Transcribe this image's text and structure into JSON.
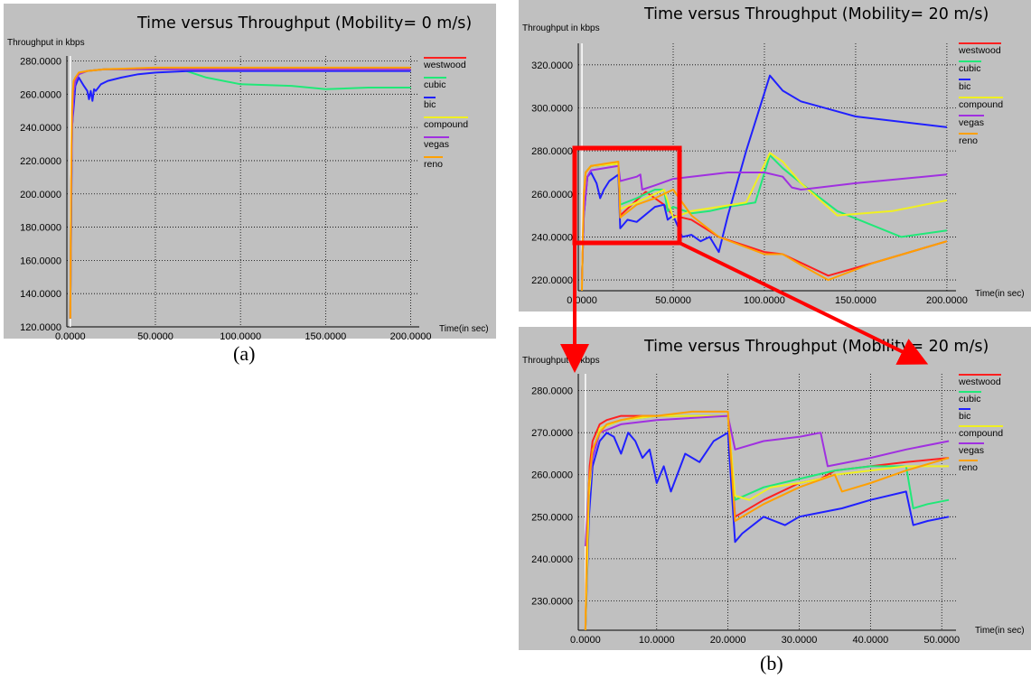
{
  "captions": {
    "a": "(a)",
    "b": "(b)"
  },
  "chart_data": [
    {
      "type": "line",
      "title": "Time versus Throughput (Mobility= 0 m/s)",
      "ylabel": "Throughput in kbps",
      "xlabel": "Time(in sec)",
      "xlim": [
        -2,
        205
      ],
      "ylim": [
        120,
        283
      ],
      "xticks": [
        0,
        50,
        100,
        150,
        200
      ],
      "xtick_labels": [
        "0.0000",
        "50.0000",
        "100.0000",
        "150.0000",
        "200.0000"
      ],
      "yticks": [
        120,
        140,
        160,
        180,
        200,
        220,
        240,
        260,
        280
      ],
      "ytick_labels": [
        "120.0000",
        "140.0000",
        "160.0000",
        "180.0000",
        "200.0000",
        "220.0000",
        "240.0000",
        "260.0000",
        "280.0000"
      ],
      "grid": true,
      "legend_position": "right",
      "series": [
        {
          "name": "westwood",
          "color": "#ff2020",
          "x": [
            0,
            0.5,
            1,
            2,
            3,
            5,
            10,
            20,
            50,
            100,
            150,
            200
          ],
          "y": [
            125,
            200,
            240,
            262,
            268,
            272,
            274,
            275,
            275,
            275,
            275,
            275
          ]
        },
        {
          "name": "cubic",
          "color": "#20e878",
          "x": [
            0,
            0.5,
            1,
            2,
            3,
            5,
            10,
            20,
            50,
            65,
            80,
            100,
            130,
            150,
            175,
            200
          ],
          "y": [
            125,
            200,
            240,
            262,
            268,
            272,
            274,
            275,
            275,
            275,
            270,
            266,
            265,
            263,
            264,
            264
          ]
        },
        {
          "name": "bic",
          "color": "#2020ff",
          "x": [
            0,
            1,
            3,
            5,
            8,
            10,
            11,
            12,
            13,
            14,
            15,
            18,
            22,
            30,
            40,
            50,
            70,
            100,
            150,
            200
          ],
          "y": [
            125,
            240,
            265,
            270,
            265,
            262,
            257,
            262,
            256,
            263,
            262,
            266,
            268,
            270,
            272,
            273,
            274,
            274,
            274,
            274
          ]
        },
        {
          "name": "compound",
          "color": "#f0f020",
          "x": [
            0,
            0.5,
            1,
            2,
            3,
            5,
            10,
            20,
            50,
            100,
            150,
            200
          ],
          "y": [
            125,
            200,
            240,
            262,
            268,
            272,
            274,
            275,
            275,
            275,
            275,
            275
          ]
        },
        {
          "name": "vegas",
          "color": "#a030e0",
          "x": [
            0,
            0.5,
            1,
            2,
            3,
            5,
            10,
            20,
            50,
            100,
            150,
            200
          ],
          "y": [
            125,
            200,
            238,
            262,
            268,
            272,
            274,
            275,
            275,
            275,
            275,
            275
          ]
        },
        {
          "name": "reno",
          "color": "#ffa000",
          "x": [
            0,
            0.3,
            0.6,
            1,
            1.5,
            2,
            3,
            5,
            10,
            20,
            50,
            100,
            150,
            200
          ],
          "y": [
            125,
            170,
            220,
            250,
            262,
            268,
            270,
            273,
            274,
            275,
            276,
            276,
            276,
            276
          ]
        }
      ]
    },
    {
      "type": "line",
      "title": "Time versus Throughput (Mobility= 20 m/s)",
      "ylabel": "Throughput in kbps",
      "xlabel": "Time(in sec)",
      "xlim": [
        -2,
        205
      ],
      "ylim": [
        215,
        330
      ],
      "xticks": [
        0,
        50,
        100,
        150,
        200
      ],
      "xtick_labels": [
        "0.0000",
        "50.0000",
        "100.0000",
        "150.0000",
        "200.0000"
      ],
      "yticks": [
        220,
        240,
        260,
        280,
        300,
        320
      ],
      "ytick_labels": [
        "220.0000",
        "240.0000",
        "260.0000",
        "280.0000",
        "300.0000",
        "320.0000"
      ],
      "grid": true,
      "legend_position": "right",
      "series": [
        {
          "name": "westwood",
          "color": "#ff2020",
          "x": [
            0,
            1,
            2,
            5,
            20,
            21,
            35,
            45,
            50,
            60,
            75,
            100,
            110,
            120,
            135,
            160,
            200
          ],
          "y": [
            220,
            250,
            270,
            273,
            274,
            250,
            261,
            255,
            250,
            248,
            240,
            233,
            232,
            228,
            222,
            228,
            238
          ]
        },
        {
          "name": "cubic",
          "color": "#20e878",
          "x": [
            0,
            1,
            2,
            5,
            20,
            21,
            30,
            40,
            45,
            47,
            50,
            60,
            70,
            80,
            95,
            103,
            110,
            120,
            140,
            175,
            200
          ],
          "y": [
            220,
            250,
            270,
            273,
            274,
            255,
            258,
            262,
            262,
            252,
            254,
            251,
            252,
            254,
            256,
            278,
            272,
            265,
            252,
            240,
            243
          ]
        },
        {
          "name": "bic",
          "color": "#2020ff",
          "x": [
            0,
            1,
            3,
            5,
            8,
            10,
            12,
            15,
            20,
            21,
            25,
            30,
            40,
            45,
            47,
            50,
            55,
            60,
            65,
            70,
            75,
            80,
            90,
            103,
            110,
            120,
            150,
            200
          ],
          "y": [
            220,
            250,
            268,
            270,
            265,
            258,
            262,
            266,
            269,
            244,
            248,
            247,
            254,
            255,
            248,
            250,
            240,
            241,
            238,
            240,
            233,
            250,
            280,
            315,
            308,
            303,
            296,
            291
          ]
        },
        {
          "name": "compound",
          "color": "#f0f020",
          "x": [
            0,
            1,
            2,
            5,
            20,
            21,
            30,
            35,
            40,
            45,
            50,
            60,
            75,
            90,
            103,
            110,
            120,
            140,
            170,
            200
          ],
          "y": [
            220,
            250,
            270,
            273,
            274,
            253,
            256,
            258,
            260,
            262,
            249,
            252,
            254,
            256,
            279,
            275,
            265,
            250,
            252,
            257
          ]
        },
        {
          "name": "vegas",
          "color": "#a030e0",
          "x": [
            0,
            1,
            3,
            5,
            20,
            21,
            30,
            32,
            33,
            40,
            50,
            60,
            80,
            100,
            110,
            115,
            120,
            150,
            200
          ],
          "y": [
            220,
            250,
            268,
            271,
            273,
            266,
            268,
            269,
            262,
            264,
            267,
            268,
            270,
            270,
            268,
            263,
            262,
            265,
            269
          ]
        },
        {
          "name": "reno",
          "color": "#ffa000",
          "x": [
            0,
            0.5,
            1,
            2,
            5,
            20,
            21,
            30,
            40,
            50,
            60,
            75,
            100,
            110,
            120,
            135,
            160,
            200
          ],
          "y": [
            215,
            240,
            260,
            270,
            273,
            275,
            249,
            255,
            258,
            262,
            250,
            240,
            232,
            232,
            227,
            220,
            228,
            238
          ]
        }
      ]
    },
    {
      "type": "line",
      "title": "Time versus Throughput (Mobility= 20 m/s)",
      "ylabel": "Throughput in kbps",
      "xlabel": "Time(in sec)",
      "xlim": [
        -1,
        52
      ],
      "ylim": [
        223,
        284
      ],
      "xticks": [
        0,
        10,
        20,
        30,
        40,
        50
      ],
      "xtick_labels": [
        "0.0000",
        "10.0000",
        "20.0000",
        "30.0000",
        "40.0000",
        "50.0000"
      ],
      "yticks": [
        230,
        240,
        250,
        260,
        270,
        280
      ],
      "ytick_labels": [
        "230.0000",
        "240.0000",
        "250.0000",
        "260.0000",
        "270.0000",
        "280.0000"
      ],
      "grid": true,
      "legend_position": "right",
      "series": [
        {
          "name": "westwood",
          "color": "#ff2020",
          "x": [
            0,
            0.3,
            0.6,
            1,
            2,
            3,
            5,
            10,
            20,
            21,
            25,
            30,
            33,
            35,
            40,
            45,
            51
          ],
          "y": [
            223,
            250,
            262,
            268,
            272,
            273,
            274,
            274,
            274,
            250,
            254,
            258,
            259,
            261,
            262,
            263,
            264
          ]
        },
        {
          "name": "cubic",
          "color": "#20e878",
          "x": [
            0,
            0.5,
            1,
            2,
            5,
            10,
            20,
            21,
            25,
            30,
            35,
            40,
            45,
            46,
            48,
            51
          ],
          "y": [
            223,
            255,
            265,
            271,
            273,
            274,
            274,
            254,
            257,
            259,
            261,
            262,
            262,
            252,
            253,
            254
          ]
        },
        {
          "name": "bic",
          "color": "#2020ff",
          "x": [
            0,
            0.5,
            1,
            2,
            3,
            4,
            5,
            6,
            7,
            8,
            9,
            10,
            11,
            12,
            14,
            16,
            18,
            20,
            21,
            22,
            25,
            28,
            30,
            33,
            36,
            40,
            45,
            46,
            48,
            51
          ],
          "y": [
            223,
            250,
            262,
            268,
            270,
            269,
            265,
            270,
            268,
            264,
            266,
            258,
            262,
            256,
            265,
            263,
            268,
            270,
            244,
            246,
            250,
            248,
            250,
            251,
            252,
            254,
            256,
            248,
            249,
            250
          ]
        },
        {
          "name": "compound",
          "color": "#f0f020",
          "x": [
            0,
            0.5,
            1,
            2,
            5,
            10,
            20,
            21,
            23,
            26,
            30,
            33,
            35,
            40,
            45,
            51
          ],
          "y": [
            223,
            255,
            265,
            271,
            273,
            274,
            274,
            255,
            254,
            257,
            258,
            259,
            260,
            261,
            262,
            262
          ]
        },
        {
          "name": "vegas",
          "color": "#a030e0",
          "x": [
            0,
            0.5,
            1,
            2,
            5,
            10,
            20,
            21,
            25,
            30,
            33,
            34,
            40,
            45,
            51
          ],
          "y": [
            243,
            258,
            264,
            270,
            272,
            273,
            274,
            266,
            268,
            269,
            270,
            262,
            264,
            266,
            268
          ]
        },
        {
          "name": "reno",
          "color": "#ffa000",
          "x": [
            0,
            0.2,
            0.5,
            1,
            2,
            3,
            5,
            8,
            10,
            15,
            20,
            21,
            25,
            30,
            35,
            36,
            40,
            45,
            51
          ],
          "y": [
            223,
            245,
            258,
            266,
            270,
            272,
            273,
            274,
            274,
            275,
            275,
            249,
            253,
            257,
            260,
            256,
            258,
            261,
            264
          ]
        }
      ]
    }
  ]
}
